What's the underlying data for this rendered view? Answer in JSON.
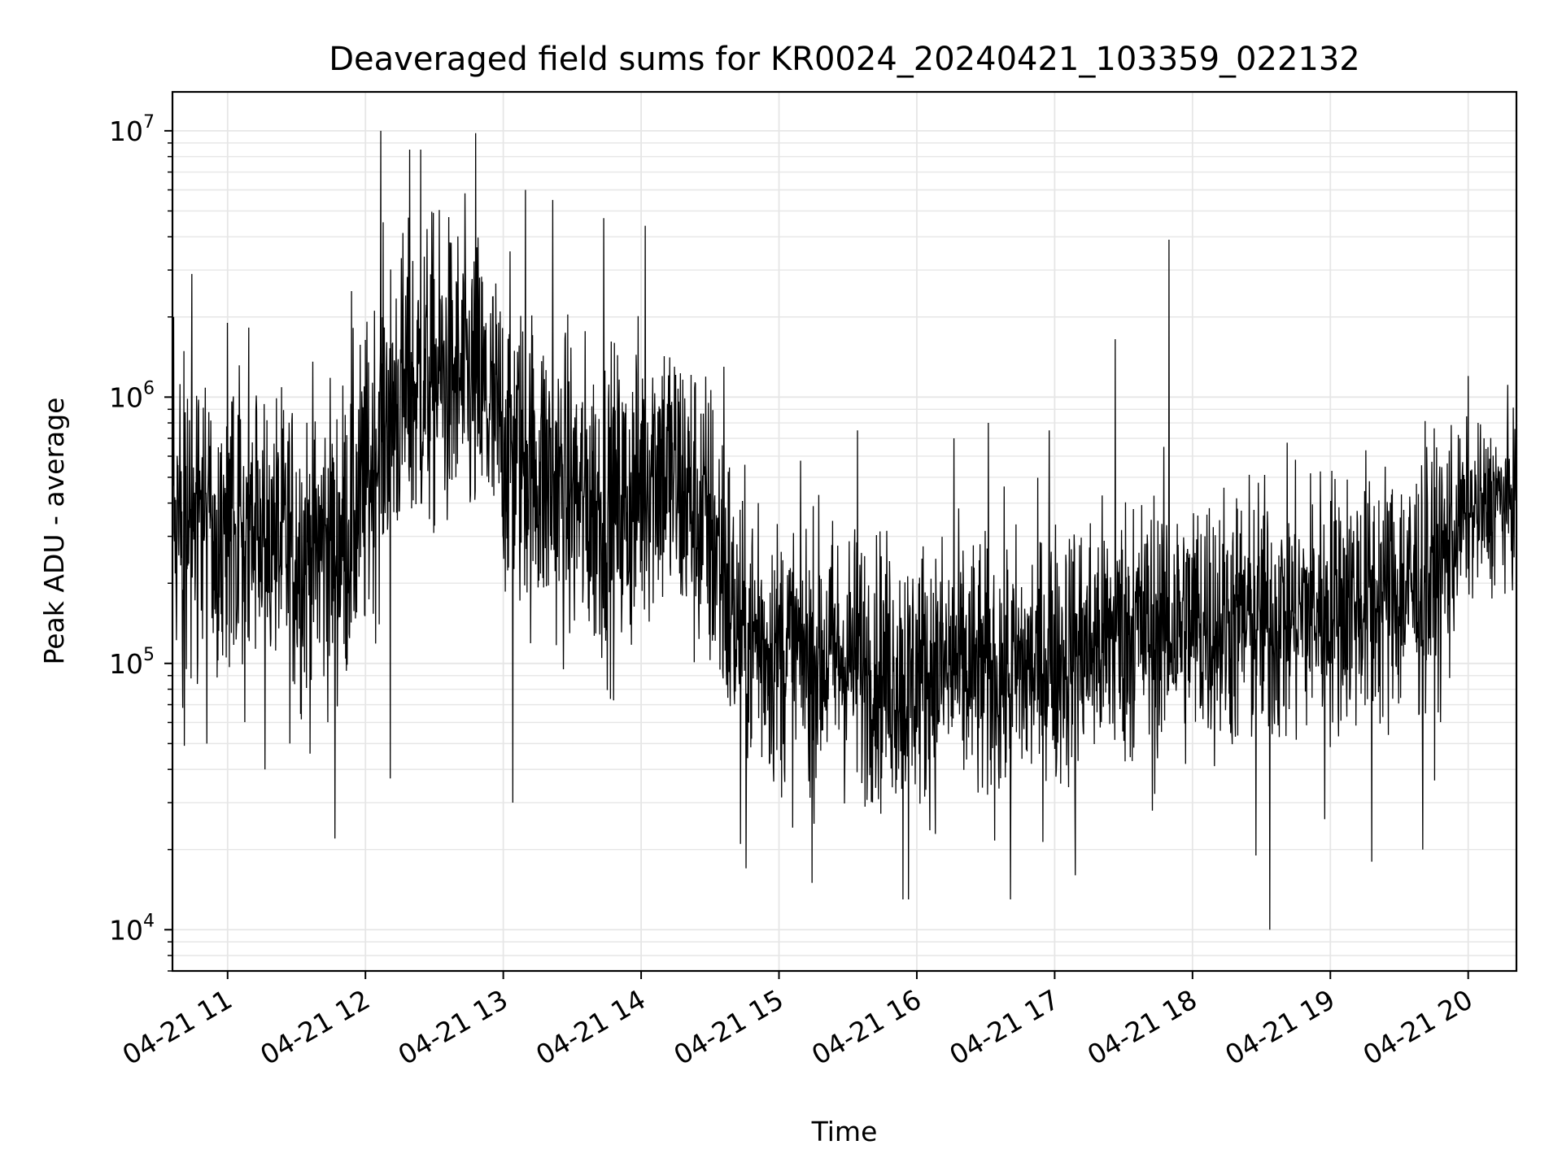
{
  "chart_data": {
    "type": "line",
    "title": "Deaveraged field sums for KR0024_20240421_103359_022132",
    "xlabel": "Time",
    "ylabel": "Peak ADU - average",
    "x_unit": "hours on 2024-04-21",
    "xlim": [
      10.6,
      20.35
    ],
    "ylim": [
      7000,
      14000000
    ],
    "yscale": "log",
    "grid": true,
    "line_color": "#000000",
    "grid_color": "#e6e6e6",
    "x_ticks": [
      {
        "value": 11,
        "label": "04-21 11"
      },
      {
        "value": 12,
        "label": "04-21 12"
      },
      {
        "value": 13,
        "label": "04-21 13"
      },
      {
        "value": 14,
        "label": "04-21 14"
      },
      {
        "value": 15,
        "label": "04-21 15"
      },
      {
        "value": 16,
        "label": "04-21 16"
      },
      {
        "value": 17,
        "label": "04-21 17"
      },
      {
        "value": 18,
        "label": "04-21 18"
      },
      {
        "value": 19,
        "label": "04-21 19"
      },
      {
        "value": 20,
        "label": "04-21 20"
      }
    ],
    "y_ticks": [
      {
        "value": 10000,
        "base": "10",
        "exp": "4"
      },
      {
        "value": 100000,
        "base": "10",
        "exp": "5"
      },
      {
        "value": 1000000,
        "base": "10",
        "exp": "6"
      },
      {
        "value": 10000000,
        "base": "10",
        "exp": "7"
      }
    ],
    "series": [
      {
        "name": "Peak ADU - average",
        "note": "Dense noisy signal; points listed as [hour, value]. Baseline segments approximate the local median level; spikes are notable local extremes.",
        "baseline": [
          [
            10.6,
            400000
          ],
          [
            11.0,
            320000
          ],
          [
            11.3,
            280000
          ],
          [
            11.6,
            260000
          ],
          [
            11.85,
            300000
          ],
          [
            12.0,
            450000
          ],
          [
            12.15,
            900000
          ],
          [
            12.5,
            1200000
          ],
          [
            12.8,
            1100000
          ],
          [
            13.0,
            700000
          ],
          [
            13.3,
            500000
          ],
          [
            13.6,
            400000
          ],
          [
            13.9,
            380000
          ],
          [
            14.1,
            600000
          ],
          [
            14.3,
            450000
          ],
          [
            14.55,
            280000
          ],
          [
            14.7,
            130000
          ],
          [
            15.0,
            110000
          ],
          [
            15.5,
            105000
          ],
          [
            15.9,
            90000
          ],
          [
            16.2,
            95000
          ],
          [
            16.5,
            90000
          ],
          [
            16.8,
            95000
          ],
          [
            17.1,
            110000
          ],
          [
            17.5,
            130000
          ],
          [
            17.9,
            140000
          ],
          [
            18.3,
            145000
          ],
          [
            18.7,
            150000
          ],
          [
            19.0,
            170000
          ],
          [
            19.4,
            180000
          ],
          [
            19.75,
            200000
          ],
          [
            19.95,
            350000
          ],
          [
            20.35,
            420000
          ]
        ],
        "spikes": [
          [
            10.61,
            2000000
          ],
          [
            10.74,
            2900000
          ],
          [
            10.85,
            50000
          ],
          [
            11.0,
            1900000
          ],
          [
            11.27,
            40000
          ],
          [
            11.78,
            22000
          ],
          [
            11.9,
            2500000
          ],
          [
            12.11,
            10000000
          ],
          [
            12.18,
            37000
          ],
          [
            12.32,
            8500000
          ],
          [
            12.4,
            8500000
          ],
          [
            12.8,
            9800000
          ],
          [
            13.07,
            30000
          ],
          [
            13.16,
            6000000
          ],
          [
            13.36,
            5500000
          ],
          [
            13.73,
            4700000
          ],
          [
            14.03,
            4400000
          ],
          [
            14.6,
            1300000
          ],
          [
            14.72,
            21000
          ],
          [
            14.76,
            17000
          ],
          [
            14.85,
            400000
          ],
          [
            15.24,
            15000
          ],
          [
            15.57,
            750000
          ],
          [
            15.9,
            13000
          ],
          [
            15.94,
            13000
          ],
          [
            16.27,
            700000
          ],
          [
            16.52,
            800000
          ],
          [
            16.68,
            13000
          ],
          [
            16.96,
            750000
          ],
          [
            17.15,
            16000
          ],
          [
            17.44,
            1650000
          ],
          [
            17.57,
            380000
          ],
          [
            17.83,
            3900000
          ],
          [
            17.71,
            28000
          ],
          [
            18.09,
            300000
          ],
          [
            18.56,
            10000
          ],
          [
            18.46,
            19000
          ],
          [
            18.96,
            26000
          ],
          [
            19.3,
            18000
          ],
          [
            19.7,
            650000
          ],
          [
            19.67,
            20000
          ],
          [
            20.0,
            1200000
          ],
          [
            20.2,
            650000
          ]
        ]
      }
    ]
  }
}
